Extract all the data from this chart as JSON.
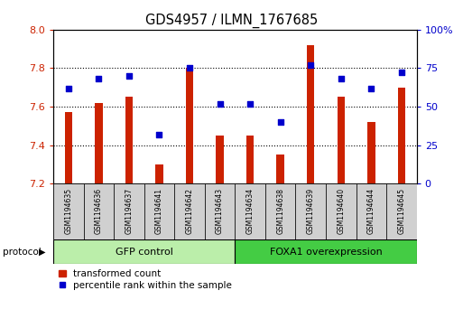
{
  "title": "GDS4957 / ILMN_1767685",
  "samples": [
    "GSM1194635",
    "GSM1194636",
    "GSM1194637",
    "GSM1194641",
    "GSM1194642",
    "GSM1194643",
    "GSM1194634",
    "GSM1194638",
    "GSM1194639",
    "GSM1194640",
    "GSM1194644",
    "GSM1194645"
  ],
  "transformed_counts": [
    7.57,
    7.62,
    7.65,
    7.3,
    7.8,
    7.45,
    7.45,
    7.35,
    7.92,
    7.65,
    7.52,
    7.7
  ],
  "percentile_ranks": [
    62,
    68,
    70,
    32,
    75,
    52,
    52,
    40,
    77,
    68,
    62,
    72
  ],
  "ylim_left": [
    7.2,
    8.0
  ],
  "ylim_right": [
    0,
    100
  ],
  "yticks_left": [
    7.2,
    7.4,
    7.6,
    7.8,
    8.0
  ],
  "yticks_right": [
    0,
    25,
    50,
    75,
    100
  ],
  "ytick_labels_right": [
    "0",
    "25",
    "50",
    "75",
    "100%"
  ],
  "bar_color": "#cc2200",
  "dot_color": "#0000cc",
  "groups": [
    {
      "label": "GFP control",
      "start": 0,
      "end": 6,
      "color": "#bbeeaa"
    },
    {
      "label": "FOXA1 overexpression",
      "start": 6,
      "end": 12,
      "color": "#44cc44"
    }
  ],
  "protocol_label": "protocol",
  "legend_bar_label": "transformed count",
  "legend_dot_label": "percentile rank within the sample",
  "bar_width": 0.25,
  "grid_yticks": [
    7.4,
    7.6,
    7.8
  ]
}
